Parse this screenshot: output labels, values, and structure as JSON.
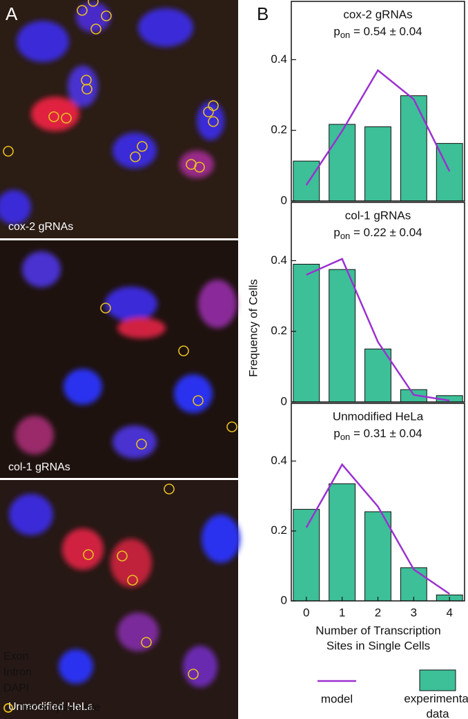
{
  "panel_a": {
    "label": "A",
    "captions": [
      "cox-2 gRNAs",
      "col-1 gRNAs",
      "Unmodified HeLa"
    ],
    "legend": [
      {
        "text": "Exon",
        "color": "#ff1a1a"
      },
      {
        "text": "Intron",
        "color": "#22dd22"
      },
      {
        "text": "DAPI",
        "color": "#2a8cff"
      },
      {
        "text": "Transcription site",
        "color": "#e8c020"
      }
    ]
  },
  "panel_b": {
    "label": "B",
    "y_label": "Frequency of Cells",
    "x_label": [
      "Number of Transcription",
      "Sites in Single Cells"
    ]
  },
  "chart_data": [
    {
      "type": "combo",
      "title": "cox-2 gRNAs",
      "subtitle": {
        "symbol": "p",
        "subscript": "on",
        "text": " = 0.54 ± 0.04"
      },
      "x": [
        0,
        1,
        2,
        3,
        4
      ],
      "xlim": [
        -0.42,
        4.42
      ],
      "ylim": [
        0,
        0.565
      ],
      "yticks": [
        0,
        0.2,
        0.4
      ],
      "series": [
        {
          "name": "model",
          "type": "line",
          "color": "#9b30d0",
          "values": [
            0.045,
            0.198,
            0.37,
            0.288,
            0.084
          ]
        },
        {
          "name": "experimental data",
          "type": "bar",
          "color": "#3dbf98",
          "values": [
            0.113,
            0.217,
            0.21,
            0.298,
            0.163
          ]
        }
      ]
    },
    {
      "type": "combo",
      "title": "col-1 gRNAs",
      "subtitle": {
        "symbol": "p",
        "subscript": "on",
        "text": " = 0.22 ± 0.04"
      },
      "x": [
        0,
        1,
        2,
        3,
        4
      ],
      "xlim": [
        -0.42,
        4.42
      ],
      "ylim": [
        0,
        0.565
      ],
      "yticks": [
        0,
        0.2,
        0.4
      ],
      "series": [
        {
          "name": "model",
          "type": "line",
          "color": "#9b30d0",
          "values": [
            0.36,
            0.405,
            0.17,
            0.02,
            0.004
          ]
        },
        {
          "name": "experimental data",
          "type": "bar",
          "color": "#3dbf98",
          "values": [
            0.39,
            0.375,
            0.15,
            0.035,
            0.018
          ]
        }
      ]
    },
    {
      "type": "combo",
      "title": "Unmodified HeLa",
      "subtitle": {
        "symbol": "p",
        "subscript": "on",
        "text": " = 0.31 ± 0.04"
      },
      "x": [
        0,
        1,
        2,
        3,
        4
      ],
      "xlim": [
        -0.42,
        4.42
      ],
      "ylim": [
        0,
        0.565
      ],
      "yticks": [
        0,
        0.2,
        0.4
      ],
      "xticks": [
        0,
        1,
        2,
        3,
        4
      ],
      "series": [
        {
          "name": "model",
          "type": "line",
          "color": "#9b30d0",
          "values": [
            0.21,
            0.39,
            0.27,
            0.09,
            0.02
          ]
        },
        {
          "name": "experimental data",
          "type": "bar",
          "color": "#3dbf98",
          "values": [
            0.262,
            0.335,
            0.255,
            0.095,
            0.017
          ]
        }
      ]
    }
  ]
}
